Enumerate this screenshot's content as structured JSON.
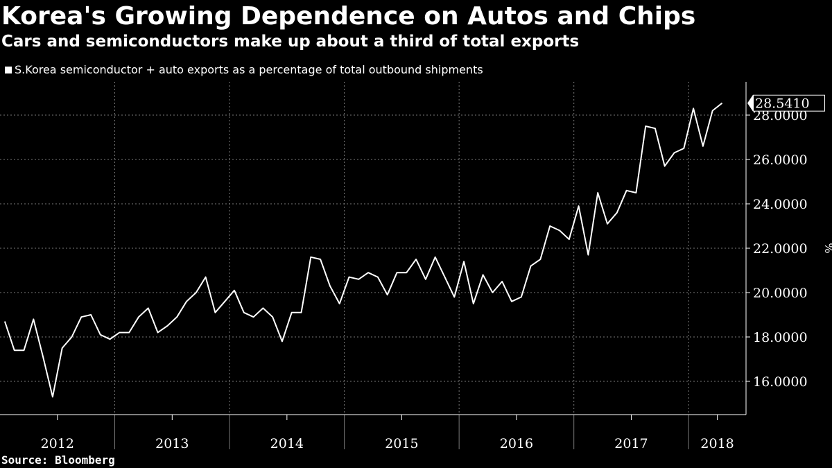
{
  "title": "Korea's Growing Dependence on Autos and Chips",
  "subtitle": "Cars and semiconductors make up about a third of total exports",
  "legend_label": "S.Korea semiconductor + auto exports as a percentage of total outbound shipments",
  "source": "Source: Bloomberg",
  "colors": {
    "background": "#000000",
    "line": "#ffffff",
    "grid": "#7a7a7a"
  },
  "chart_data": {
    "type": "line",
    "ylabel": "%",
    "ylim": [
      14.5,
      29.5
    ],
    "yticks": [
      16,
      18,
      20,
      22,
      24,
      26,
      28
    ],
    "ytick_labels": [
      "16.0000",
      "18.0000",
      "20.0000",
      "22.0000",
      "24.0000",
      "26.0000",
      "28.0000"
    ],
    "x_start": "2012-01",
    "x_end": "2018-06",
    "year_labels": [
      "2012",
      "2013",
      "2014",
      "2015",
      "2016",
      "2017",
      "2018"
    ],
    "last_value_label": "28.5410",
    "grid": true,
    "series": [
      {
        "name": "S.Korea semiconductor + auto exports as a percentage of total outbound shipments",
        "points": [
          [
            "2012-01",
            18.7
          ],
          [
            "2012-02",
            17.4
          ],
          [
            "2012-03",
            17.4
          ],
          [
            "2012-04",
            18.8
          ],
          [
            "2012-05",
            17.1
          ],
          [
            "2012-06",
            15.3
          ],
          [
            "2012-07",
            17.5
          ],
          [
            "2012-08",
            18.0
          ],
          [
            "2012-09",
            18.9
          ],
          [
            "2012-10",
            19.0
          ],
          [
            "2012-11",
            18.1
          ],
          [
            "2012-12",
            17.9
          ],
          [
            "2013-01",
            18.2
          ],
          [
            "2013-02",
            18.2
          ],
          [
            "2013-03",
            18.9
          ],
          [
            "2013-04",
            19.3
          ],
          [
            "2013-05",
            18.2
          ],
          [
            "2013-06",
            18.5
          ],
          [
            "2013-07",
            18.9
          ],
          [
            "2013-08",
            19.6
          ],
          [
            "2013-09",
            20.0
          ],
          [
            "2013-10",
            20.7
          ],
          [
            "2013-11",
            19.1
          ],
          [
            "2013-12",
            19.6
          ],
          [
            "2014-01",
            20.1
          ],
          [
            "2014-02",
            19.1
          ],
          [
            "2014-03",
            18.9
          ],
          [
            "2014-04",
            19.3
          ],
          [
            "2014-05",
            18.9
          ],
          [
            "2014-06",
            17.8
          ],
          [
            "2014-07",
            19.1
          ],
          [
            "2014-08",
            19.1
          ],
          [
            "2014-09",
            21.6
          ],
          [
            "2014-10",
            21.5
          ],
          [
            "2014-11",
            20.3
          ],
          [
            "2014-12",
            19.5
          ],
          [
            "2015-01",
            20.7
          ],
          [
            "2015-02",
            20.6
          ],
          [
            "2015-03",
            20.9
          ],
          [
            "2015-04",
            20.7
          ],
          [
            "2015-05",
            19.9
          ],
          [
            "2015-06",
            20.9
          ],
          [
            "2015-07",
            20.9
          ],
          [
            "2015-08",
            21.5
          ],
          [
            "2015-09",
            20.6
          ],
          [
            "2015-10",
            21.6
          ],
          [
            "2015-11",
            20.7
          ],
          [
            "2015-12",
            19.8
          ],
          [
            "2016-01",
            21.4
          ],
          [
            "2016-02",
            19.5
          ],
          [
            "2016-03",
            20.8
          ],
          [
            "2016-04",
            20.0
          ],
          [
            "2016-05",
            20.5
          ],
          [
            "2016-06",
            19.6
          ],
          [
            "2016-07",
            19.8
          ],
          [
            "2016-08",
            21.2
          ],
          [
            "2016-09",
            21.5
          ],
          [
            "2016-10",
            23.0
          ],
          [
            "2016-11",
            22.8
          ],
          [
            "2016-12",
            22.4
          ],
          [
            "2017-01",
            23.9
          ],
          [
            "2017-02",
            21.7
          ],
          [
            "2017-03",
            24.5
          ],
          [
            "2017-04",
            23.1
          ],
          [
            "2017-05",
            23.6
          ],
          [
            "2017-06",
            24.6
          ],
          [
            "2017-07",
            24.5
          ],
          [
            "2017-08",
            27.5
          ],
          [
            "2017-09",
            27.4
          ],
          [
            "2017-10",
            25.7
          ],
          [
            "2017-11",
            26.3
          ],
          [
            "2017-12",
            26.5
          ],
          [
            "2018-01",
            28.3
          ],
          [
            "2018-02",
            26.6
          ],
          [
            "2018-03",
            28.2
          ],
          [
            "2018-04",
            28.541
          ]
        ]
      }
    ]
  }
}
